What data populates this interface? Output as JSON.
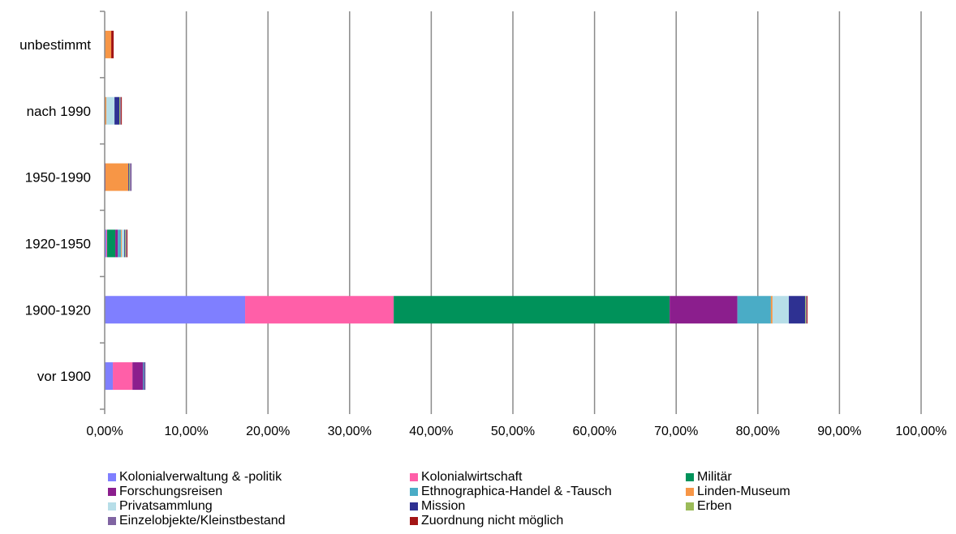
{
  "chart_data": {
    "type": "bar",
    "orientation": "horizontal",
    "stacked": true,
    "title": "",
    "xlabel": "",
    "ylabel": "",
    "xlim": [
      0,
      100
    ],
    "x_ticks": [
      "0,00%",
      "10,00%",
      "20,00%",
      "30,00%",
      "40,00%",
      "50,00%",
      "60,00%",
      "70,00%",
      "80,00%",
      "90,00%",
      "100,00%"
    ],
    "grid": "vertical",
    "legend_position": "bottom",
    "categories": [
      "unbestimmt",
      "nach 1990",
      "1950-1990",
      "1920-1950",
      "1900-1920",
      "vor 1900"
    ],
    "series": [
      {
        "name": "Kolonialverwaltung & -politik",
        "color": "#7f7fff",
        "values": [
          0,
          0,
          0,
          0.2,
          17.2,
          1.0
        ]
      },
      {
        "name": "Kolonialwirtschaft",
        "color": "#ff5fa8",
        "values": [
          0,
          0,
          0,
          0.1,
          18.2,
          2.4
        ]
      },
      {
        "name": "Militär",
        "color": "#00925a",
        "values": [
          0,
          0,
          0,
          1.0,
          33.8,
          0
        ]
      },
      {
        "name": "Forschungsreisen",
        "color": "#8b1e8d",
        "values": [
          0,
          0,
          0.1,
          0.3,
          8.3,
          1.3
        ]
      },
      {
        "name": "Ethnographica-Handel & -Tausch",
        "color": "#4aacc6",
        "values": [
          0,
          0,
          0,
          0.4,
          4.1,
          0.1
        ]
      },
      {
        "name": "Linden-Museum",
        "color": "#f79646",
        "values": [
          0.8,
          0.2,
          2.8,
          0.1,
          0.2,
          0
        ]
      },
      {
        "name": "Privatsammlung",
        "color": "#b7dee8",
        "values": [
          0,
          1.0,
          0,
          0.3,
          2.0,
          0
        ]
      },
      {
        "name": "Mission",
        "color": "#2e3192",
        "values": [
          0,
          0.6,
          0.1,
          0.1,
          2.0,
          0.1
        ]
      },
      {
        "name": "Erben",
        "color": "#9bbb59",
        "values": [
          0,
          0.1,
          0.1,
          0.1,
          0.1,
          0
        ]
      },
      {
        "name": "Einzelobjekte/Kleinstbestand",
        "color": "#8064a2",
        "values": [
          0,
          0.1,
          0.2,
          0.1,
          0.1,
          0.1
        ]
      },
      {
        "name": "Zuordnung nicht möglich",
        "color": "#a31515",
        "values": [
          0.3,
          0.1,
          0,
          0.1,
          0.1,
          0
        ]
      }
    ]
  }
}
